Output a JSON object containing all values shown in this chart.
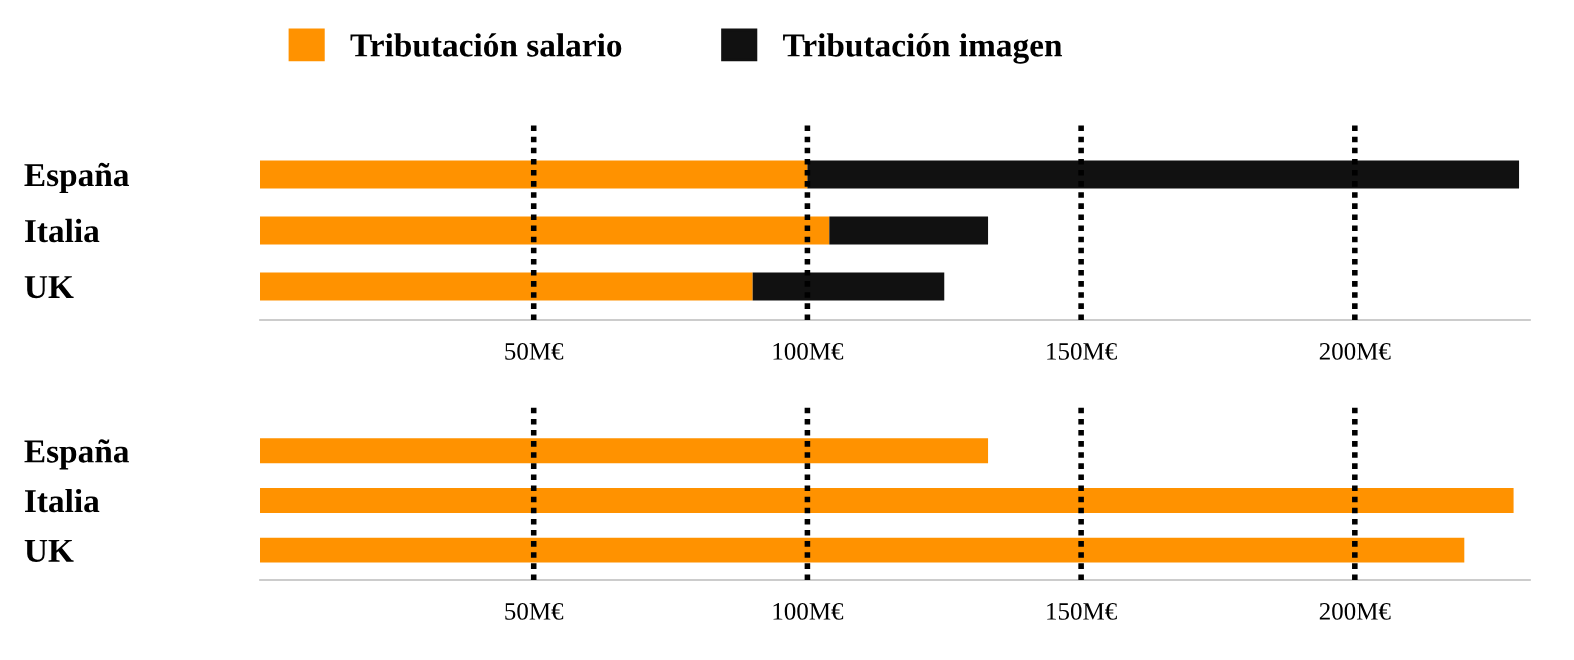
{
  "chart_data": [
    {
      "type": "bar",
      "orientation": "horizontal",
      "stacked": true,
      "categories": [
        "España",
        "Italia",
        "UK"
      ],
      "series": [
        {
          "name": "Tributación salario",
          "color": "#ff9200",
          "values": [
            100,
            104,
            90
          ]
        },
        {
          "name": "Tributación imagen",
          "color": "#111111",
          "values": [
            130,
            29,
            35
          ]
        }
      ],
      "xlim": [
        0,
        232
      ],
      "xticks": [
        {
          "value": 50,
          "label": "50M€"
        },
        {
          "value": 100,
          "label": "100M€"
        },
        {
          "value": 150,
          "label": "150M€"
        },
        {
          "value": 200,
          "label": "200M€"
        }
      ],
      "grid": "x",
      "legend": "top left"
    },
    {
      "type": "bar",
      "orientation": "horizontal",
      "stacked": true,
      "categories": [
        "España",
        "Italia",
        "UK"
      ],
      "series": [
        {
          "color": "#ff9200",
          "values": [
            133,
            229,
            220
          ]
        }
      ],
      "xlim": [
        0,
        232
      ],
      "xticks": [
        {
          "value": 50,
          "label": "50M€"
        },
        {
          "value": 100,
          "label": "100M€"
        },
        {
          "value": 150,
          "label": "150M€"
        },
        {
          "value": 200,
          "label": "200M€"
        }
      ],
      "grid": "x"
    }
  ]
}
